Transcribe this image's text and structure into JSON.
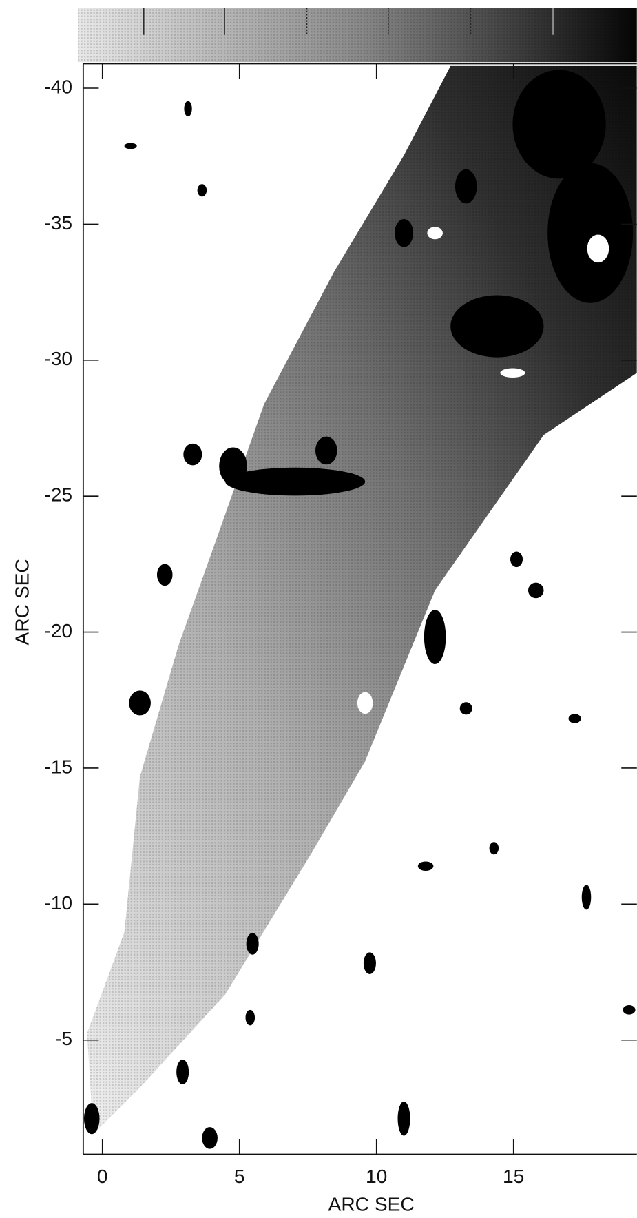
{
  "chart_data": {
    "type": "image",
    "xlabel": "ARC SEC",
    "ylabel": "ARC SEC",
    "xlim": [
      -0.7,
      19.5
    ],
    "xticks": [
      0,
      5,
      10,
      15
    ],
    "ylim": [
      -0.8,
      -40.9
    ],
    "yticks": [
      -40,
      -35,
      -30,
      -25,
      -20,
      -15,
      -10,
      -5
    ],
    "colormap": "gray"
  }
}
